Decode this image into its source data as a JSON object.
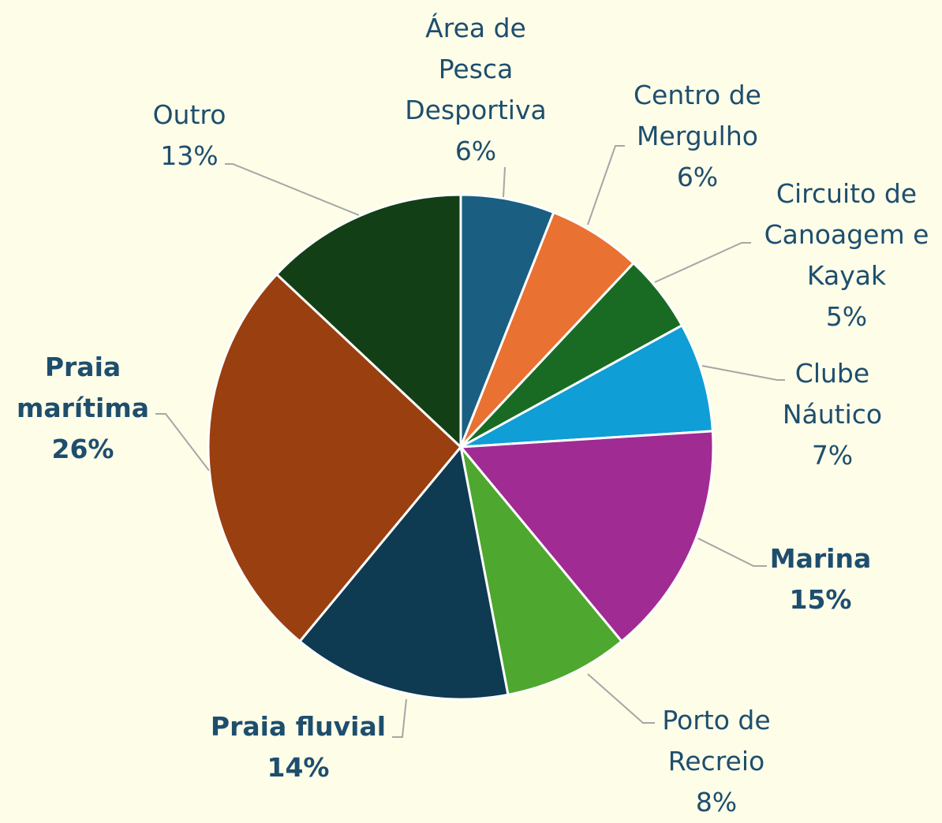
{
  "chart_data": {
    "type": "pie",
    "categories": [
      "Área de Pesca Desportiva",
      "Centro de Mergulho",
      "Circuito de Canoagem e Kayak",
      "Clube Náutico",
      "Marina",
      "Porto de Recreio",
      "Praia fluvial",
      "Praia marítima",
      "Outro"
    ],
    "values": [
      6,
      6,
      5,
      7,
      15,
      8,
      14,
      26,
      13
    ],
    "value_labels": [
      "6%",
      "6%",
      "5%",
      "7%",
      "15%",
      "8%",
      "14%",
      "26%",
      "13%"
    ],
    "colors": [
      "#1a5f82",
      "#e97132",
      "#196b24",
      "#0f9ed5",
      "#a02b93",
      "#4ea72e",
      "#0e3a52",
      "#9a3f10",
      "#133f16"
    ],
    "bold_labels": [
      false,
      false,
      false,
      false,
      true,
      false,
      true,
      true,
      false
    ]
  }
}
